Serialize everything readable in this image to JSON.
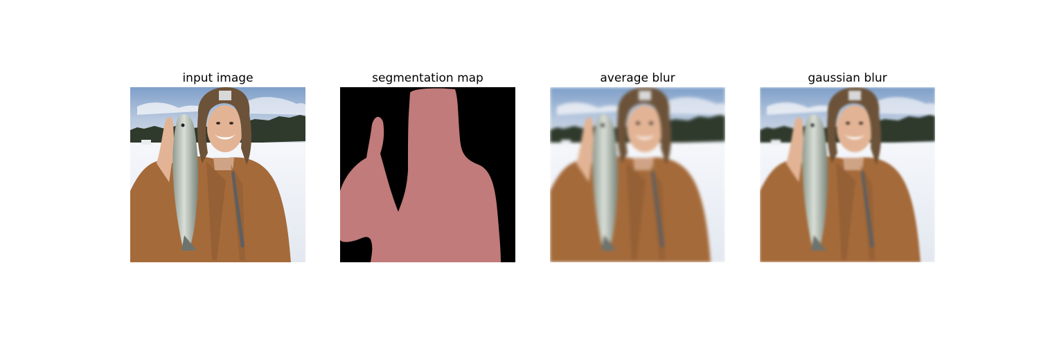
{
  "panels": [
    {
      "title": "input image"
    },
    {
      "title": "segmentation map"
    },
    {
      "title": "average blur"
    },
    {
      "title": "gaussian blur"
    }
  ],
  "colors": {
    "segmentation_foreground": "#c07b7a",
    "segmentation_background": "#000000",
    "sky": "#9fb7d6",
    "snow": "#eef1f6",
    "treeline": "#2f3a2c",
    "jacket": "#a56a3a",
    "hat": "#6c5238",
    "skin": "#e2b495",
    "fish": "#b9c1ba"
  }
}
